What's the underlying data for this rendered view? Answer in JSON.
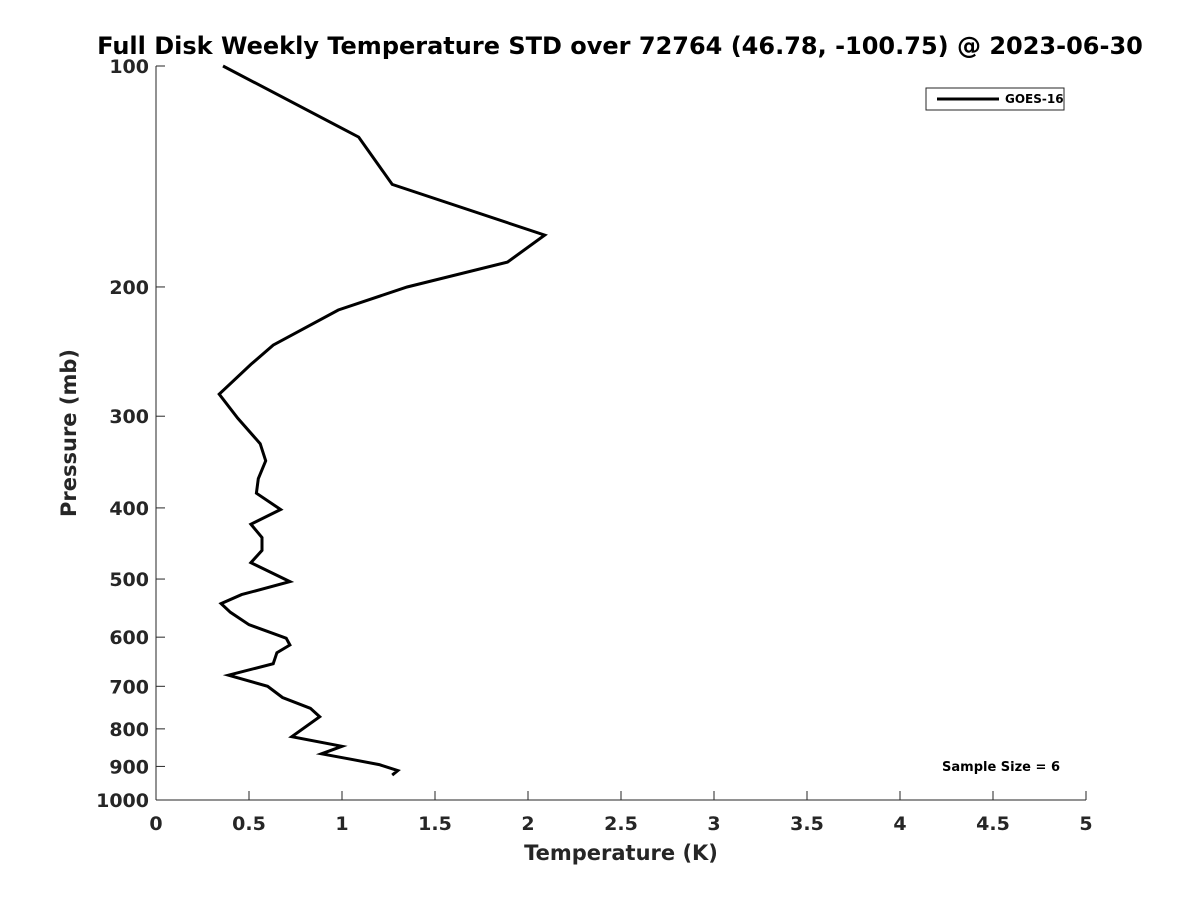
{
  "chart_data": {
    "type": "line",
    "title": "Full Disk Weekly Temperature STD over 72764 (46.78, -100.75) @ 2023-06-30",
    "xlabel": "Temperature (K)",
    "ylabel": "Pressure (mb)",
    "xlim": [
      0,
      5
    ],
    "ylim": [
      1000,
      100
    ],
    "yscale": "log",
    "y_reversed": true,
    "xticks": [
      "0",
      "0.5",
      "1",
      "1.5",
      "2",
      "2.5",
      "3",
      "3.5",
      "4",
      "4.5",
      "5"
    ],
    "yticks": [
      "100",
      "200",
      "300",
      "400",
      "500",
      "600",
      "700",
      "800",
      "900",
      "1000"
    ],
    "grid": false,
    "legend": {
      "position": "top-right",
      "entries": [
        "GOES-16"
      ]
    },
    "annotation": "Sample Size = 6",
    "series": [
      {
        "name": "GOES-16",
        "color": "#000000",
        "points": [
          [
            0.36,
            100
          ],
          [
            1.09,
            125
          ],
          [
            1.27,
            145
          ],
          [
            2.09,
            170
          ],
          [
            1.89,
            185
          ],
          [
            1.35,
            200
          ],
          [
            0.98,
            215
          ],
          [
            0.63,
            240
          ],
          [
            0.51,
            255
          ],
          [
            0.34,
            280
          ],
          [
            0.44,
            302
          ],
          [
            0.56,
            327
          ],
          [
            0.59,
            345
          ],
          [
            0.55,
            365
          ],
          [
            0.54,
            382
          ],
          [
            0.67,
            402
          ],
          [
            0.51,
            421
          ],
          [
            0.57,
            439
          ],
          [
            0.57,
            457
          ],
          [
            0.51,
            475
          ],
          [
            0.72,
            504
          ],
          [
            0.46,
            525
          ],
          [
            0.35,
            540
          ],
          [
            0.4,
            555
          ],
          [
            0.5,
            577
          ],
          [
            0.7,
            602
          ],
          [
            0.72,
            615
          ],
          [
            0.65,
            630
          ],
          [
            0.63,
            652
          ],
          [
            0.39,
            676
          ],
          [
            0.6,
            700
          ],
          [
            0.68,
            725
          ],
          [
            0.83,
            750
          ],
          [
            0.88,
            770
          ],
          [
            0.73,
            820
          ],
          [
            1.0,
            845
          ],
          [
            0.89,
            865
          ],
          [
            1.05,
            880
          ],
          [
            1.2,
            895
          ],
          [
            1.3,
            912
          ],
          [
            1.27,
            925
          ]
        ]
      }
    ]
  }
}
